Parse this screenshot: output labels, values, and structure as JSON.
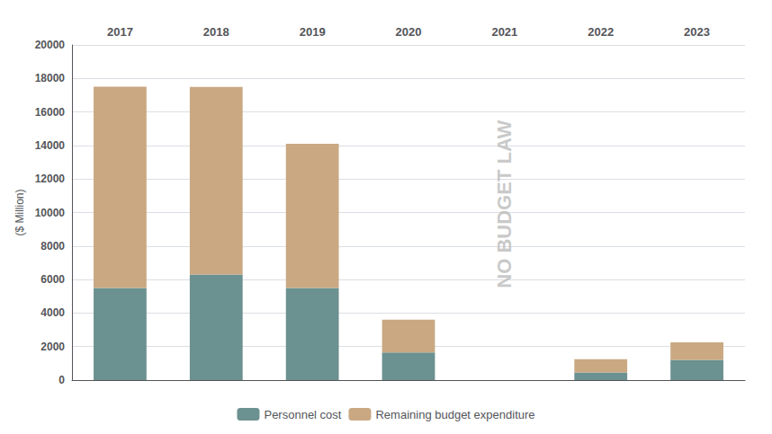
{
  "chart_data": {
    "type": "bar",
    "stacked": true,
    "categories": [
      "2017",
      "2018",
      "2019",
      "2020",
      "2021",
      "2022",
      "2023"
    ],
    "series": [
      {
        "name": "Personnel cost",
        "color": "#6b9190",
        "values": [
          5500,
          6300,
          5500,
          1650,
          0,
          450,
          1200
        ]
      },
      {
        "name": "Remaining budget expenditure",
        "color": "#c9a882",
        "values": [
          12000,
          11200,
          8600,
          1950,
          0,
          800,
          1050
        ]
      }
    ],
    "ylabel": "($ Million)",
    "ylim": [
      0,
      20000
    ],
    "yticks": [
      0,
      2000,
      4000,
      6000,
      8000,
      10000,
      12000,
      14000,
      16000,
      18000,
      20000
    ],
    "grid": true,
    "legend": "bottom",
    "annotations": [
      {
        "text": "NO BUDGET LAW",
        "x": "2021",
        "y": 10500
      }
    ]
  }
}
